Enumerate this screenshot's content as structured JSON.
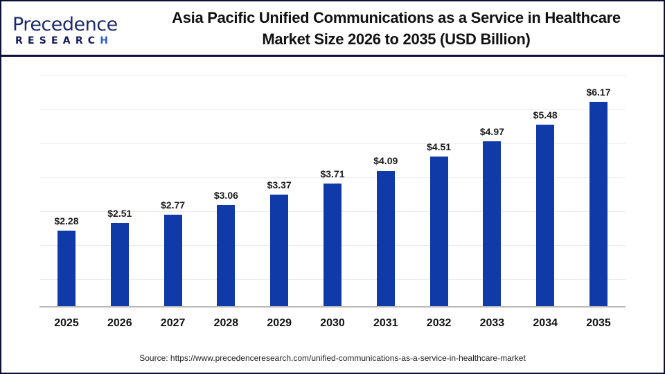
{
  "header": {
    "logo_top": "Precedence",
    "logo_bottom_main": "RESEARC",
    "logo_bottom_accent": "H",
    "title_line1": "Asia Pacific Unified Communications as a Service in Healthcare",
    "title_line2": "Market Size 2026 to 2035 (USD Billion)"
  },
  "source": "Source: https://www.precedenceresearch.com/unified-communications-as-a-service-in-healthcare-market",
  "colors": {
    "bar": "#0f3aa8",
    "border": "#0b0f3a",
    "grid": "#ececec",
    "baseline": "#b9b9b9"
  },
  "chart_data": {
    "type": "bar",
    "title": "Asia Pacific Unified Communications as a Service in Healthcare Market Size 2026 to 2035 (USD Billion)",
    "xlabel": "",
    "ylabel": "USD Billion",
    "ylim": [
      0,
      7
    ],
    "grid": true,
    "legend": "none",
    "categories": [
      "2025",
      "2026",
      "2027",
      "2028",
      "2029",
      "2030",
      "2031",
      "2032",
      "2033",
      "2034",
      "2035"
    ],
    "values": [
      2.28,
      2.51,
      2.77,
      3.06,
      3.37,
      3.71,
      4.09,
      4.51,
      4.97,
      5.48,
      6.17
    ],
    "labels": [
      "$2.28",
      "$2.51",
      "$2.77",
      "$3.06",
      "$3.37",
      "$3.71",
      "$4.09",
      "$4.51",
      "$4.97",
      "$5.48",
      "$6.17"
    ]
  }
}
